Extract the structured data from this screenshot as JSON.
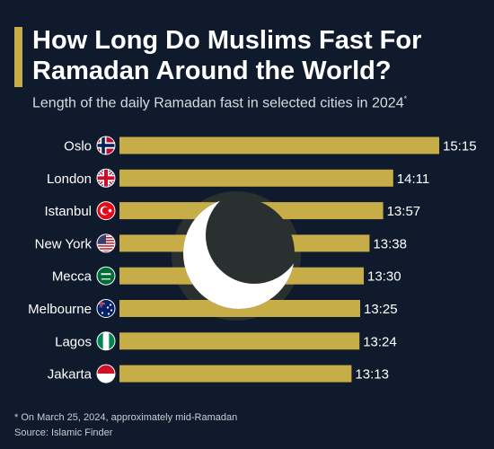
{
  "header": {
    "title": "How Long Do Muslims Fast For Ramadan Around the World?",
    "subtitle": "Length of the daily Ramadan fast in selected cities in 2024",
    "subtitle_marker": "*"
  },
  "footer": {
    "note": "* On March 25, 2024, approximately mid-Ramadan",
    "source": "Source: Islamic Finder"
  },
  "colors": {
    "background": "#0f1a2c",
    "bar": "#c7ad48",
    "accent": "#c7ad48",
    "moon": "#ffffff"
  },
  "decoration": {
    "icon": "crescent-moon-icon"
  },
  "chart_data": {
    "type": "bar",
    "orientation": "horizontal",
    "categories": [
      "Oslo",
      "London",
      "Istanbul",
      "New York",
      "Mecca",
      "Melbourne",
      "Lagos",
      "Jakarta"
    ],
    "flags": [
      "norway-flag-icon",
      "uk-flag-icon",
      "turkey-flag-icon",
      "usa-flag-icon",
      "saudi-arabia-flag-icon",
      "australia-flag-icon",
      "nigeria-flag-icon",
      "indonesia-flag-icon"
    ],
    "labels": [
      "15:15",
      "14:11",
      "13:57",
      "13:38",
      "13:30",
      "13:25",
      "13:24",
      "13:13"
    ],
    "values": [
      915,
      851,
      837,
      818,
      810,
      805,
      804,
      793
    ],
    "value_unit": "minutes",
    "grid": false,
    "legend": "none"
  }
}
